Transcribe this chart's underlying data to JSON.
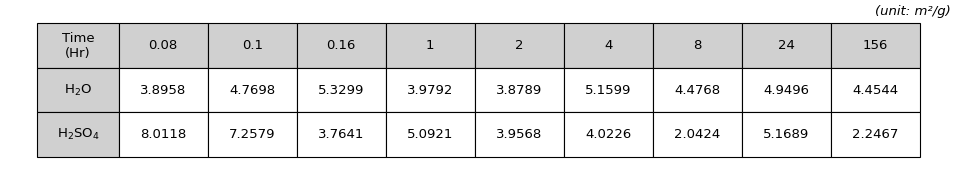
{
  "unit_text": "(unit: m²/g)",
  "col_headers": [
    "Time\n(Hr)",
    "0.08",
    "0.1",
    "0.16",
    "1",
    "2",
    "4",
    "8",
    "24",
    "156"
  ],
  "row1_label": "H$_2$O",
  "row2_label": "H$_2$SO$_4$",
  "row1_values": [
    "3.8958",
    "4.7698",
    "5.3299",
    "3.9792",
    "3.8789",
    "5.1599",
    "4.4768",
    "4.9496",
    "4.4544"
  ],
  "row2_values": [
    "8.0118",
    "7.2579",
    "3.7641",
    "5.0921",
    "3.9568",
    "4.0226",
    "2.0424",
    "5.1689",
    "2.2467"
  ],
  "header_bg": "#d0d0d0",
  "cell_bg": "#ffffff",
  "border_color": "#000000",
  "font_size": 9.5,
  "unit_font_size": 9.5
}
